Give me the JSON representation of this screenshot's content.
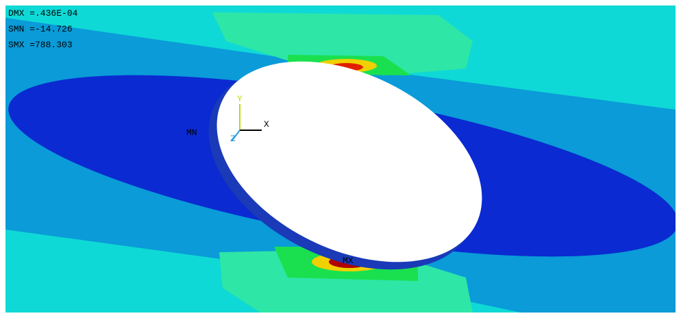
{
  "legend_text": {
    "dmx": "DMX =.436E-04",
    "smn": "SMN =-14.726",
    "smx": "SMX =788.303"
  },
  "labels": {
    "min": "MN",
    "max": "MX"
  },
  "triad": {
    "x": "X",
    "y": "Y",
    "z": "Z"
  }
}
